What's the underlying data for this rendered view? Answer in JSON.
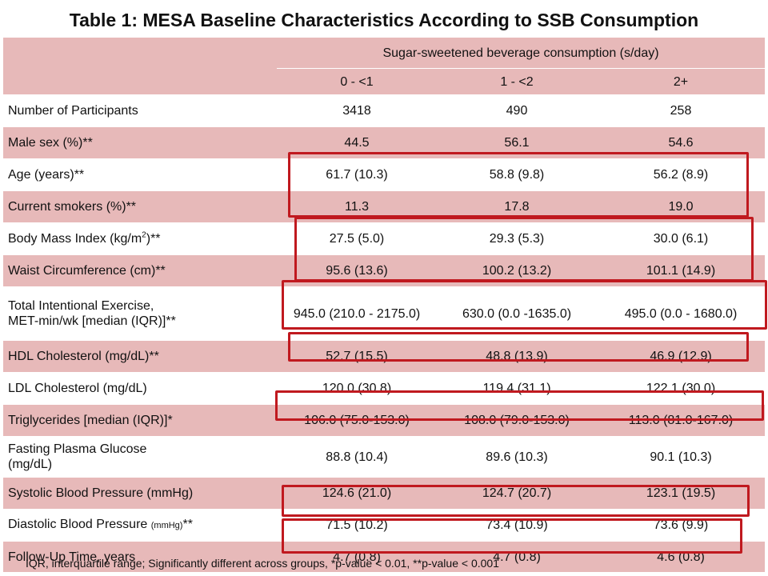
{
  "title": "Table 1: MESA Baseline Characteristics According to SSB Consumption",
  "table": {
    "group_header": "Sugar-sweetened beverage consumption (s/day)",
    "columns": [
      "0 - <1",
      "1 - <2",
      "2+"
    ],
    "rows": [
      {
        "label": "Number of Participants",
        "values": [
          "3418",
          "490",
          "258"
        ]
      },
      {
        "label": "Male sex (%)**",
        "values": [
          "44.5",
          "56.1",
          "54.6"
        ]
      },
      {
        "label": "Age (years)**",
        "values": [
          "61.7 (10.3)",
          "58.8 (9.8)",
          "56.2 (8.9)"
        ]
      },
      {
        "label": "Current smokers (%)**",
        "values": [
          "11.3",
          "17.8",
          "19.0"
        ]
      },
      {
        "label_main": "Body Mass Index (kg/m",
        "label_sup": "2",
        "label_tail": ")**",
        "values": [
          "27.5 (5.0)",
          "29.3 (5.3)",
          "30.0 (6.1)"
        ]
      },
      {
        "label": "Waist Circumference (cm)**",
        "values": [
          "95.6 (13.6)",
          "100.2 (13.2)",
          "101.1 (14.9)"
        ]
      },
      {
        "label_line1": "Total Intentional Exercise,",
        "label_line2": "MET-min/wk [median (IQR)]**",
        "values": [
          "945.0 (210.0 - 2175.0)",
          "630.0 (0.0 -1635.0)",
          "495.0 (0.0 - 1680.0)"
        ]
      },
      {
        "label": "HDL Cholesterol (mg/dL)**",
        "values": [
          "52.7 (15.5)",
          "48.8 (13.9)",
          "46.9 (12.9)"
        ]
      },
      {
        "label": "LDL Cholesterol (mg/dL)",
        "values": [
          "120.0 (30.8)",
          "119.4 (31.1)",
          "122.1 (30.0)"
        ]
      },
      {
        "label": "Triglycerides [median (IQR)]*",
        "values": [
          "106.0 (75.0-153.0)",
          "108.0 (79.0-153.0)",
          "113.0 (81.0-167.0)"
        ]
      },
      {
        "label_line1": "Fasting Plasma Glucose",
        "label_line2": "(mg/dL)",
        "values": [
          "88.8 (10.4)",
          "89.6 (10.3)",
          "90.1 (10.3)"
        ]
      },
      {
        "label": "Systolic Blood Pressure (mmHg)",
        "values": [
          "124.6 (21.0)",
          "124.7 (20.7)",
          "123.1 (19.5)"
        ]
      },
      {
        "label_main": "Diastolic Blood Pressure ",
        "label_small": "(mmHg)",
        "label_tail": "**",
        "values": [
          "71.5 (10.2)",
          "73.4 (10.9)",
          "73.6 (9.9)"
        ]
      },
      {
        "label": "Follow-Up Time, years",
        "values": [
          "4.7 (0.8)",
          "4.7 (0.8)",
          "4.6 (0.8)"
        ]
      }
    ]
  },
  "footnote": "IQR, interquartile range; Significantly different across groups, *p-value < 0.01, **p-value < 0.001",
  "colors": {
    "row_pink": "#e7b9b9",
    "highlight_box": "#c0191f"
  }
}
